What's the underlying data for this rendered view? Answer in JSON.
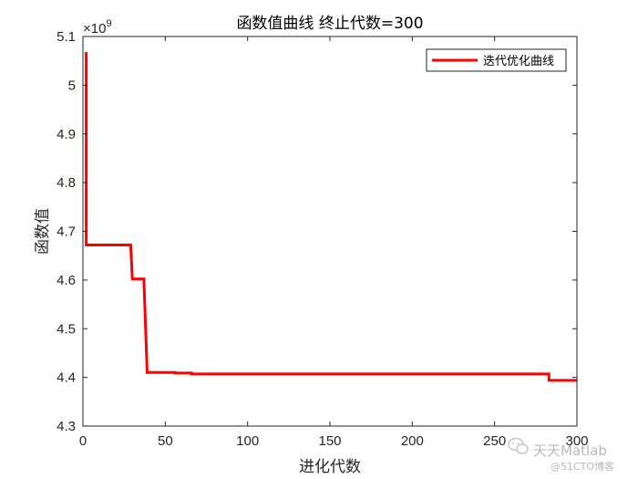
{
  "chart_data": {
    "type": "line",
    "title": "函数值曲线 终止代数=300",
    "xlabel": "进化代数",
    "ylabel": "函数值",
    "xlim": [
      0,
      300
    ],
    "ylim": [
      4.3,
      5.1
    ],
    "y_exponent_label": "×10",
    "y_exponent": "9",
    "xticks": [
      0,
      50,
      100,
      150,
      200,
      250,
      300
    ],
    "yticks": [
      4.3,
      4.4,
      4.5,
      4.6,
      4.7,
      4.8,
      4.9,
      5,
      5.1
    ],
    "grid": false,
    "legend_position": "top-right",
    "series": [
      {
        "name": "迭代优化曲线",
        "color": "#ff0000",
        "x": [
          1,
          2,
          2,
          29,
          29,
          30,
          30,
          37,
          37,
          39,
          39,
          56,
          56,
          66,
          66,
          283,
          283,
          300
        ],
        "y": [
          5.065,
          5.065,
          4.672,
          4.672,
          4.672,
          4.602,
          4.602,
          4.602,
          4.602,
          4.41,
          4.41,
          4.41,
          4.409,
          4.409,
          4.407,
          4.407,
          4.394,
          4.394
        ]
      }
    ]
  },
  "watermark": {
    "brand": "天天Matlab",
    "site": "@51CTO博客",
    "icon": "wechat-icon"
  }
}
